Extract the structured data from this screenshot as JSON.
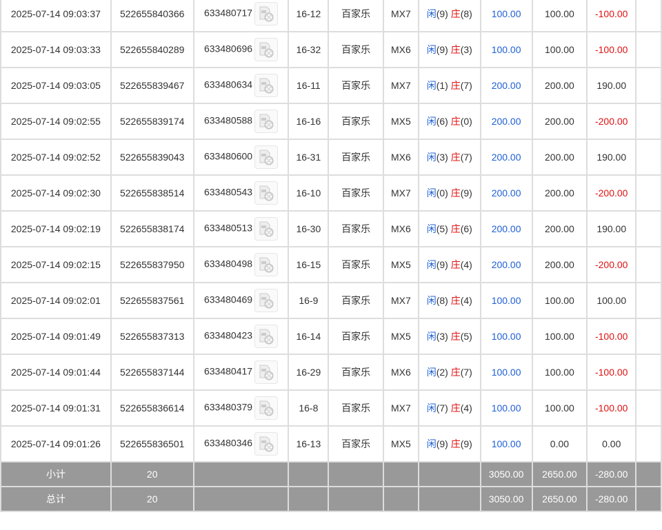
{
  "colors": {
    "player": "#1e5fd6",
    "banker": "#e01010",
    "negative": "#e01010",
    "bet": "#1e5fd6",
    "footer_bg": "#999999"
  },
  "rows": [
    {
      "time": "2025-07-14 09:03:37",
      "order": "522655840366",
      "round": "633480717",
      "table": "16-12",
      "game": "百家乐",
      "room": "MX7",
      "player": "闲",
      "p": "(9)",
      "banker": "庄",
      "b": "(8)",
      "bet": "100.00",
      "valid": "100.00",
      "win": "-100.00",
      "neg": true
    },
    {
      "time": "2025-07-14 09:03:33",
      "order": "522655840289",
      "round": "633480696",
      "table": "16-32",
      "game": "百家乐",
      "room": "MX6",
      "player": "闲",
      "p": "(9)",
      "banker": "庄",
      "b": "(3)",
      "bet": "100.00",
      "valid": "100.00",
      "win": "-100.00",
      "neg": true
    },
    {
      "time": "2025-07-14 09:03:05",
      "order": "522655839467",
      "round": "633480634",
      "table": "16-11",
      "game": "百家乐",
      "room": "MX7",
      "player": "闲",
      "p": "(1)",
      "banker": "庄",
      "b": "(7)",
      "bet": "200.00",
      "valid": "200.00",
      "win": "190.00",
      "neg": false
    },
    {
      "time": "2025-07-14 09:02:55",
      "order": "522655839174",
      "round": "633480588",
      "table": "16-16",
      "game": "百家乐",
      "room": "MX5",
      "player": "闲",
      "p": "(6)",
      "banker": "庄",
      "b": "(0)",
      "bet": "200.00",
      "valid": "200.00",
      "win": "-200.00",
      "neg": true
    },
    {
      "time": "2025-07-14 09:02:52",
      "order": "522655839043",
      "round": "633480600",
      "table": "16-31",
      "game": "百家乐",
      "room": "MX6",
      "player": "闲",
      "p": "(3)",
      "banker": "庄",
      "b": "(7)",
      "bet": "200.00",
      "valid": "200.00",
      "win": "190.00",
      "neg": false
    },
    {
      "time": "2025-07-14 09:02:30",
      "order": "522655838514",
      "round": "633480543",
      "table": "16-10",
      "game": "百家乐",
      "room": "MX7",
      "player": "闲",
      "p": "(0)",
      "banker": "庄",
      "b": "(9)",
      "bet": "200.00",
      "valid": "200.00",
      "win": "-200.00",
      "neg": true
    },
    {
      "time": "2025-07-14 09:02:19",
      "order": "522655838174",
      "round": "633480513",
      "table": "16-30",
      "game": "百家乐",
      "room": "MX6",
      "player": "闲",
      "p": "(5)",
      "banker": "庄",
      "b": "(6)",
      "bet": "200.00",
      "valid": "200.00",
      "win": "190.00",
      "neg": false
    },
    {
      "time": "2025-07-14 09:02:15",
      "order": "522655837950",
      "round": "633480498",
      "table": "16-15",
      "game": "百家乐",
      "room": "MX5",
      "player": "闲",
      "p": "(9)",
      "banker": "庄",
      "b": "(4)",
      "bet": "200.00",
      "valid": "200.00",
      "win": "-200.00",
      "neg": true
    },
    {
      "time": "2025-07-14 09:02:01",
      "order": "522655837561",
      "round": "633480469",
      "table": "16-9",
      "game": "百家乐",
      "room": "MX7",
      "player": "闲",
      "p": "(8)",
      "banker": "庄",
      "b": "(4)",
      "bet": "100.00",
      "valid": "100.00",
      "win": "100.00",
      "neg": false
    },
    {
      "time": "2025-07-14 09:01:49",
      "order": "522655837313",
      "round": "633480423",
      "table": "16-14",
      "game": "百家乐",
      "room": "MX5",
      "player": "闲",
      "p": "(3)",
      "banker": "庄",
      "b": "(5)",
      "bet": "100.00",
      "valid": "100.00",
      "win": "-100.00",
      "neg": true
    },
    {
      "time": "2025-07-14 09:01:44",
      "order": "522655837144",
      "round": "633480417",
      "table": "16-29",
      "game": "百家乐",
      "room": "MX6",
      "player": "闲",
      "p": "(2)",
      "banker": "庄",
      "b": "(7)",
      "bet": "100.00",
      "valid": "100.00",
      "win": "-100.00",
      "neg": true
    },
    {
      "time": "2025-07-14 09:01:31",
      "order": "522655836614",
      "round": "633480379",
      "table": "16-8",
      "game": "百家乐",
      "room": "MX7",
      "player": "闲",
      "p": "(7)",
      "banker": "庄",
      "b": "(4)",
      "bet": "100.00",
      "valid": "100.00",
      "win": "-100.00",
      "neg": true
    },
    {
      "time": "2025-07-14 09:01:26",
      "order": "522655836501",
      "round": "633480346",
      "table": "16-13",
      "game": "百家乐",
      "room": "MX5",
      "player": "闲",
      "p": "(9)",
      "banker": "庄",
      "b": "(9)",
      "bet": "100.00",
      "valid": "0.00",
      "win": "0.00",
      "neg": false
    }
  ],
  "subtotal": {
    "label": "小计",
    "count": "20",
    "bet": "3050.00",
    "valid": "2650.00",
    "win": "-280.00"
  },
  "total": {
    "label": "总计",
    "count": "20",
    "bet": "3050.00",
    "valid": "2650.00",
    "win": "-280.00"
  }
}
